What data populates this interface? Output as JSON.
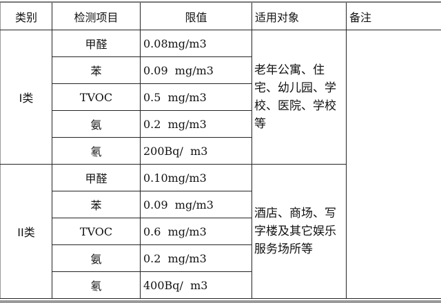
{
  "headers": [
    "类别",
    "检测项目",
    "限值",
    "适用对象",
    "备注"
  ],
  "groups": [
    {
      "category": "I类",
      "applicable": "老年公寓、住宅、幼儿园、学校、医院、学校等",
      "rows": [
        {
          "item": "甲醛",
          "limit": "0.08mg/m3"
        },
        {
          "item": "苯",
          "limit": "0.09  mg/m3"
        },
        {
          "item": "TVOC",
          "limit": "0.5  mg/m3"
        },
        {
          "item": "氨",
          "limit": "0.2  mg/m3"
        },
        {
          "item": "氡",
          "limit": "200Bq/  m3"
        }
      ]
    },
    {
      "category": "II类",
      "applicable": "酒店、商场、写字楼及其它娱乐服务场所等",
      "rows": [
        {
          "item": "甲醛",
          "limit": "0.10mg/m3"
        },
        {
          "item": "苯",
          "limit": "0.09  mg/m3"
        },
        {
          "item": "TVOC",
          "limit": "0.6  mg/m3"
        },
        {
          "item": "氨",
          "limit": "0.2  mg/m3"
        },
        {
          "item": "氡",
          "limit": "400Bq/  m3"
        }
      ]
    }
  ],
  "remarks": ""
}
